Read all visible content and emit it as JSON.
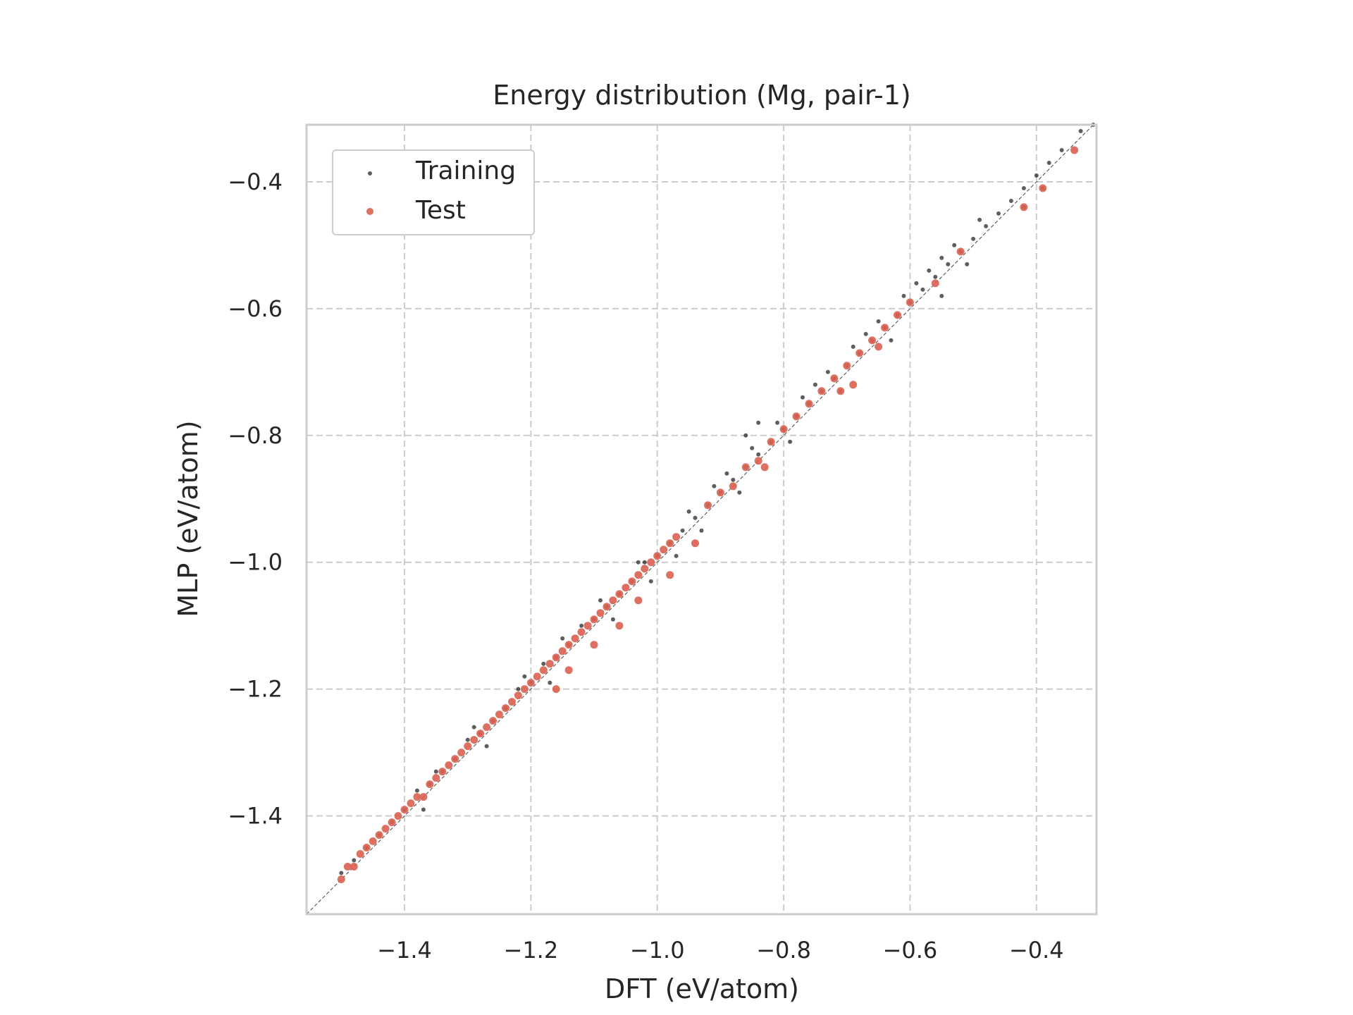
{
  "chart_data": {
    "type": "scatter",
    "title": "Energy distribution (Mg, pair-1)",
    "xlabel": "DFT (eV/atom)",
    "ylabel": "MLP (eV/atom)",
    "xlim": [
      -1.555,
      -0.305
    ],
    "ylim": [
      -1.555,
      -0.31
    ],
    "xticks": [
      -1.4,
      -1.2,
      -1.0,
      -0.8,
      -0.6,
      -0.4
    ],
    "yticks": [
      -1.4,
      -1.2,
      -1.0,
      -0.8,
      -0.6,
      -0.4
    ],
    "xtick_labels": [
      "−1.4",
      "−1.2",
      "−1.0",
      "−0.8",
      "−0.6",
      "−0.4"
    ],
    "ytick_labels": [
      "−1.4",
      "−1.2",
      "−1.0",
      "−0.8",
      "−0.6",
      "−0.4"
    ],
    "grid": true,
    "legend_position": "top-left",
    "reference_line": "y = x",
    "series": [
      {
        "name": "Training",
        "color": "#1a1a1a",
        "points": [
          [
            -1.5,
            -1.49
          ],
          [
            -1.48,
            -1.47
          ],
          [
            -1.46,
            -1.45
          ],
          [
            -1.44,
            -1.43
          ],
          [
            -1.42,
            -1.41
          ],
          [
            -1.4,
            -1.39
          ],
          [
            -1.38,
            -1.36
          ],
          [
            -1.36,
            -1.35
          ],
          [
            -1.34,
            -1.33
          ],
          [
            -1.32,
            -1.31
          ],
          [
            -1.3,
            -1.28
          ],
          [
            -1.28,
            -1.27
          ],
          [
            -1.26,
            -1.25
          ],
          [
            -1.24,
            -1.23
          ],
          [
            -1.22,
            -1.2
          ],
          [
            -1.2,
            -1.19
          ],
          [
            -1.18,
            -1.16
          ],
          [
            -1.16,
            -1.15
          ],
          [
            -1.14,
            -1.13
          ],
          [
            -1.12,
            -1.1
          ],
          [
            -1.1,
            -1.09
          ],
          [
            -1.08,
            -1.07
          ],
          [
            -1.06,
            -1.05
          ],
          [
            -1.04,
            -1.03
          ],
          [
            -1.02,
            -1.0
          ],
          [
            -1.0,
            -0.99
          ],
          [
            -0.98,
            -0.97
          ],
          [
            -0.96,
            -0.95
          ],
          [
            -0.94,
            -0.93
          ],
          [
            -0.92,
            -0.91
          ],
          [
            -0.9,
            -0.89
          ],
          [
            -0.88,
            -0.87
          ],
          [
            -0.86,
            -0.85
          ],
          [
            -0.84,
            -0.83
          ],
          [
            -0.82,
            -0.81
          ],
          [
            -0.8,
            -0.79
          ],
          [
            -0.78,
            -0.77
          ],
          [
            -0.76,
            -0.75
          ],
          [
            -0.74,
            -0.73
          ],
          [
            -0.72,
            -0.71
          ],
          [
            -0.7,
            -0.69
          ],
          [
            -0.68,
            -0.67
          ],
          [
            -0.66,
            -0.65
          ],
          [
            -0.64,
            -0.63
          ],
          [
            -0.62,
            -0.61
          ],
          [
            -0.6,
            -0.59
          ],
          [
            -0.58,
            -0.57
          ],
          [
            -0.56,
            -0.55
          ],
          [
            -0.54,
            -0.53
          ],
          [
            -0.52,
            -0.51
          ],
          [
            -0.5,
            -0.49
          ],
          [
            -0.48,
            -0.47
          ],
          [
            -0.46,
            -0.45
          ],
          [
            -0.44,
            -0.43
          ],
          [
            -0.42,
            -0.41
          ],
          [
            -0.4,
            -0.39
          ],
          [
            -0.38,
            -0.37
          ],
          [
            -0.36,
            -0.35
          ],
          [
            -0.33,
            -0.32
          ],
          [
            -0.31,
            -0.31
          ],
          [
            -1.35,
            -1.33
          ],
          [
            -1.29,
            -1.26
          ],
          [
            -1.21,
            -1.18
          ],
          [
            -1.15,
            -1.12
          ],
          [
            -1.09,
            -1.06
          ],
          [
            -1.03,
            -1.0
          ],
          [
            -1.01,
            -1.03
          ],
          [
            -0.97,
            -0.99
          ],
          [
            -0.93,
            -0.95
          ],
          [
            -0.89,
            -0.86
          ],
          [
            -0.85,
            -0.82
          ],
          [
            -0.81,
            -0.78
          ],
          [
            -0.77,
            -0.74
          ],
          [
            -0.73,
            -0.7
          ],
          [
            -0.69,
            -0.66
          ],
          [
            -0.65,
            -0.62
          ],
          [
            -0.61,
            -0.58
          ],
          [
            -0.57,
            -0.54
          ],
          [
            -0.53,
            -0.5
          ],
          [
            -0.49,
            -0.46
          ],
          [
            -1.37,
            -1.39
          ],
          [
            -1.27,
            -1.29
          ],
          [
            -1.17,
            -1.19
          ],
          [
            -1.07,
            -1.09
          ],
          [
            -0.87,
            -0.89
          ],
          [
            -0.79,
            -0.81
          ],
          [
            -0.71,
            -0.73
          ],
          [
            -0.63,
            -0.65
          ],
          [
            -0.55,
            -0.58
          ],
          [
            -0.51,
            -0.53
          ],
          [
            -0.84,
            -0.78
          ],
          [
            -0.86,
            -0.8
          ],
          [
            -0.95,
            -0.92
          ],
          [
            -0.91,
            -0.88
          ],
          [
            -0.75,
            -0.72
          ],
          [
            -0.67,
            -0.64
          ],
          [
            -0.59,
            -0.56
          ],
          [
            -0.55,
            -0.52
          ],
          [
            -0.39,
            -0.41
          ],
          [
            -0.42,
            -0.44
          ]
        ]
      },
      {
        "name": "Test",
        "color": "#d9604f",
        "points": [
          [
            -1.5,
            -1.5
          ],
          [
            -1.49,
            -1.48
          ],
          [
            -1.48,
            -1.48
          ],
          [
            -1.47,
            -1.46
          ],
          [
            -1.46,
            -1.45
          ],
          [
            -1.45,
            -1.44
          ],
          [
            -1.44,
            -1.43
          ],
          [
            -1.43,
            -1.42
          ],
          [
            -1.42,
            -1.41
          ],
          [
            -1.41,
            -1.4
          ],
          [
            -1.4,
            -1.39
          ],
          [
            -1.39,
            -1.38
          ],
          [
            -1.38,
            -1.37
          ],
          [
            -1.37,
            -1.37
          ],
          [
            -1.36,
            -1.35
          ],
          [
            -1.35,
            -1.34
          ],
          [
            -1.34,
            -1.33
          ],
          [
            -1.33,
            -1.32
          ],
          [
            -1.32,
            -1.31
          ],
          [
            -1.31,
            -1.3
          ],
          [
            -1.3,
            -1.29
          ],
          [
            -1.29,
            -1.28
          ],
          [
            -1.28,
            -1.27
          ],
          [
            -1.27,
            -1.26
          ],
          [
            -1.26,
            -1.25
          ],
          [
            -1.25,
            -1.24
          ],
          [
            -1.24,
            -1.23
          ],
          [
            -1.23,
            -1.22
          ],
          [
            -1.22,
            -1.21
          ],
          [
            -1.21,
            -1.2
          ],
          [
            -1.2,
            -1.19
          ],
          [
            -1.19,
            -1.18
          ],
          [
            -1.18,
            -1.17
          ],
          [
            -1.17,
            -1.16
          ],
          [
            -1.16,
            -1.15
          ],
          [
            -1.15,
            -1.14
          ],
          [
            -1.14,
            -1.13
          ],
          [
            -1.13,
            -1.12
          ],
          [
            -1.12,
            -1.11
          ],
          [
            -1.11,
            -1.1
          ],
          [
            -1.1,
            -1.09
          ],
          [
            -1.09,
            -1.08
          ],
          [
            -1.08,
            -1.07
          ],
          [
            -1.07,
            -1.06
          ],
          [
            -1.06,
            -1.05
          ],
          [
            -1.05,
            -1.04
          ],
          [
            -1.04,
            -1.03
          ],
          [
            -1.03,
            -1.02
          ],
          [
            -1.02,
            -1.01
          ],
          [
            -1.01,
            -1.0
          ],
          [
            -1.0,
            -0.99
          ],
          [
            -0.99,
            -0.98
          ],
          [
            -0.98,
            -0.97
          ],
          [
            -0.97,
            -0.96
          ],
          [
            -0.92,
            -0.91
          ],
          [
            -0.9,
            -0.89
          ],
          [
            -0.88,
            -0.88
          ],
          [
            -0.86,
            -0.85
          ],
          [
            -0.84,
            -0.84
          ],
          [
            -0.82,
            -0.81
          ],
          [
            -0.8,
            -0.79
          ],
          [
            -0.78,
            -0.77
          ],
          [
            -0.76,
            -0.75
          ],
          [
            -0.74,
            -0.73
          ],
          [
            -0.72,
            -0.71
          ],
          [
            -0.7,
            -0.69
          ],
          [
            -0.68,
            -0.67
          ],
          [
            -0.66,
            -0.65
          ],
          [
            -0.64,
            -0.63
          ],
          [
            -0.62,
            -0.61
          ],
          [
            -0.6,
            -0.59
          ],
          [
            -0.56,
            -0.56
          ],
          [
            -0.52,
            -0.51
          ],
          [
            -0.42,
            -0.44
          ],
          [
            -0.39,
            -0.41
          ],
          [
            -0.34,
            -0.35
          ],
          [
            -1.16,
            -1.2
          ],
          [
            -1.14,
            -1.17
          ],
          [
            -1.1,
            -1.13
          ],
          [
            -1.06,
            -1.1
          ],
          [
            -1.03,
            -1.06
          ],
          [
            -0.98,
            -1.02
          ],
          [
            -0.94,
            -0.97
          ],
          [
            -0.83,
            -0.85
          ],
          [
            -0.71,
            -0.73
          ],
          [
            -0.69,
            -0.72
          ],
          [
            -0.65,
            -0.66
          ]
        ]
      }
    ]
  }
}
